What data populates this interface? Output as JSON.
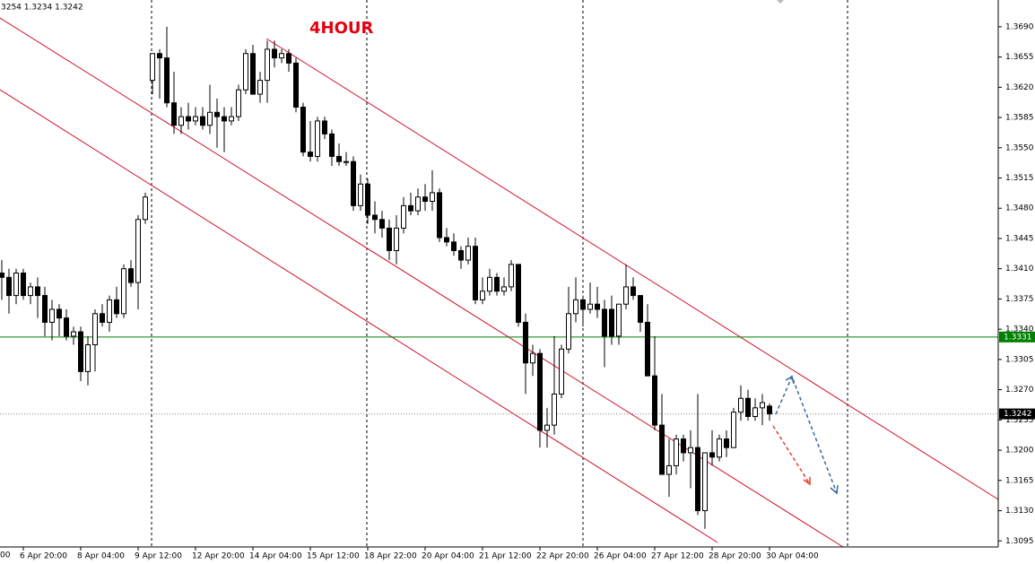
{
  "chart_data": {
    "type": "candlestick",
    "title": "4HOUR",
    "info": "3254 1.3234 1.3242",
    "clipped_label": "00",
    "categories": [
      null,
      null,
      null,
      "6 Apr 20:00",
      null,
      null,
      null,
      null,
      null,
      null,
      null,
      "8 Apr 04:00",
      null,
      null,
      null,
      null,
      null,
      null,
      null,
      "9 Apr 12:00",
      null,
      null,
      null,
      null,
      null,
      null,
      null,
      "12 Apr 20:00",
      null,
      null,
      null,
      null,
      null,
      null,
      null,
      "14 Apr 04:00",
      null,
      null,
      null,
      null,
      null,
      null,
      null,
      "15 Apr 12:00",
      null,
      null,
      null,
      null,
      null,
      null,
      null,
      "18 Apr 22:00",
      null,
      null,
      null,
      null,
      null,
      null,
      null,
      "20 Apr 04:00",
      null,
      null,
      null,
      null,
      null,
      null,
      null,
      "21 Apr 12:00",
      null,
      null,
      null,
      null,
      null,
      null,
      null,
      "22 Apr 20:00",
      null,
      null,
      null,
      null,
      null,
      null,
      null,
      "26 Apr 04:00",
      null,
      null,
      null,
      null,
      null,
      null,
      null,
      "27 Apr 12:00",
      null,
      null,
      null,
      null,
      null,
      null,
      null,
      "28 Apr 20:00",
      null,
      null,
      null,
      null,
      null,
      null,
      null,
      "30 Apr 04:00"
    ],
    "open": [
      1.3405,
      1.34,
      1.3379,
      1.3405,
      1.3379,
      1.3389,
      1.3379,
      1.3348,
      1.3363,
      1.3353,
      1.3332,
      1.3337,
      1.3291,
      1.3322,
      1.3358,
      1.3348,
      1.3374,
      1.3358,
      1.341,
      1.3394,
      1.3467,
      1.3628,
      1.3659,
      1.3654,
      1.3602,
      1.3576,
      1.3586,
      1.3581,
      1.3586,
      1.3576,
      1.3591,
      1.3586,
      1.3581,
      1.3586,
      1.3617,
      1.3659,
      1.3612,
      1.3628,
      1.3664,
      1.3654,
      1.3659,
      1.3648,
      1.3597,
      1.3545,
      1.354,
      1.3581,
      1.3566,
      1.354,
      1.3534,
      1.3534,
      1.3483,
      1.3508,
      1.3472,
      1.3467,
      1.3457,
      1.3431,
      1.3457,
      1.3483,
      1.3477,
      1.3493,
      1.3488,
      1.3498,
      1.3446,
      1.3441,
      1.3431,
      1.342,
      1.3436,
      1.3374,
      1.3384,
      1.34,
      1.3384,
      1.3389,
      1.3415,
      1.3348,
      1.3301,
      1.3312,
      1.3223,
      1.3229,
      1.3265,
      1.3317,
      1.3358,
      1.3374,
      1.3363,
      1.3369,
      1.3363,
      1.3363,
      1.3332,
      1.3369,
      1.3389,
      1.3379,
      1.3348,
      1.3286,
      1.3229,
      1.3172,
      1.3182,
      1.3213,
      1.3197,
      1.3203,
      1.313,
      1.3197,
      1.3192,
      1.3213,
      1.3203,
      1.3244,
      1.326,
      1.3239,
      1.3249,
      1.3251
    ],
    "high": [
      1.342,
      1.341,
      1.341,
      1.341,
      1.3394,
      1.34,
      1.3389,
      1.3374,
      1.3369,
      1.3363,
      1.3343,
      1.3343,
      1.3332,
      1.3363,
      1.3369,
      1.3379,
      1.3389,
      1.3415,
      1.342,
      1.3472,
      1.3498,
      1.3659,
      1.3664,
      1.369,
      1.3638,
      1.3597,
      1.3602,
      1.3597,
      1.3597,
      1.3623,
      1.3607,
      1.3597,
      1.3597,
      1.3623,
      1.3664,
      1.3669,
      1.3638,
      1.3674,
      1.3674,
      1.3664,
      1.3664,
      1.3654,
      1.3602,
      1.3581,
      1.3586,
      1.3586,
      1.3571,
      1.3555,
      1.3545,
      1.354,
      1.3519,
      1.3514,
      1.3488,
      1.3477,
      1.3467,
      1.3472,
      1.3493,
      1.3498,
      1.3503,
      1.3508,
      1.3524,
      1.3503,
      1.3457,
      1.3451,
      1.3436,
      1.3446,
      1.3446,
      1.34,
      1.341,
      1.3405,
      1.34,
      1.342,
      1.3415,
      1.3358,
      1.3322,
      1.3317,
      1.3249,
      1.3332,
      1.3322,
      1.3389,
      1.34,
      1.3379,
      1.3394,
      1.3389,
      1.3374,
      1.3379,
      1.3369,
      1.3415,
      1.34,
      1.3379,
      1.3369,
      1.3332,
      1.3265,
      1.3213,
      1.3218,
      1.3218,
      1.3223,
      1.3265,
      1.3197,
      1.3223,
      1.3218,
      1.3223,
      1.3249,
      1.3275,
      1.327,
      1.326,
      1.3265,
      1.3254
    ],
    "low": [
      1.3374,
      1.3358,
      1.3369,
      1.3374,
      1.3369,
      1.3353,
      1.3332,
      1.3327,
      1.3332,
      1.3327,
      1.3322,
      1.328,
      1.3275,
      1.3291,
      1.3343,
      1.3337,
      1.3353,
      1.3353,
      1.3389,
      1.3363,
      1.3462,
      1.3612,
      1.3607,
      1.3597,
      1.3566,
      1.3566,
      1.3571,
      1.3576,
      1.3571,
      1.3566,
      1.355,
      1.3545,
      1.3576,
      1.3581,
      1.3612,
      1.3612,
      1.3602,
      1.3602,
      1.3643,
      1.3648,
      1.3638,
      1.3591,
      1.354,
      1.3534,
      1.3534,
      1.356,
      1.3529,
      1.3529,
      1.3529,
      1.3477,
      1.3477,
      1.3462,
      1.3451,
      1.3446,
      1.342,
      1.3415,
      1.3451,
      1.3472,
      1.3472,
      1.3477,
      1.3477,
      1.3441,
      1.3436,
      1.3425,
      1.341,
      1.3415,
      1.3369,
      1.3369,
      1.3379,
      1.3379,
      1.3379,
      1.3384,
      1.3343,
      1.3265,
      1.3286,
      1.3203,
      1.3203,
      1.3218,
      1.326,
      1.3312,
      1.3348,
      1.3343,
      1.3358,
      1.3353,
      1.3296,
      1.3322,
      1.3322,
      1.3363,
      1.3374,
      1.3337,
      1.3286,
      1.3223,
      1.3172,
      1.3146,
      1.3172,
      1.3187,
      1.3156,
      1.3125,
      1.3109,
      1.3182,
      1.3187,
      1.3192,
      1.3203,
      1.3234,
      1.3234,
      1.3234,
      1.3229,
      1.3234
    ],
    "close": [
      1.34,
      1.3379,
      1.3405,
      1.3379,
      1.3389,
      1.3379,
      1.3348,
      1.3363,
      1.3353,
      1.3332,
      1.3337,
      1.3291,
      1.3322,
      1.3358,
      1.3348,
      1.3374,
      1.3358,
      1.341,
      1.3394,
      1.3467,
      1.3493,
      1.3659,
      1.3654,
      1.3602,
      1.3576,
      1.3586,
      1.3581,
      1.3586,
      1.3576,
      1.3591,
      1.3586,
      1.3581,
      1.3586,
      1.3617,
      1.3659,
      1.3612,
      1.3628,
      1.3664,
      1.3654,
      1.3659,
      1.3648,
      1.3597,
      1.3545,
      1.354,
      1.3581,
      1.3566,
      1.354,
      1.3534,
      1.3534,
      1.3483,
      1.3508,
      1.3472,
      1.3467,
      1.3457,
      1.3431,
      1.3457,
      1.3483,
      1.3477,
      1.3493,
      1.3488,
      1.3498,
      1.3446,
      1.3441,
      1.3431,
      1.342,
      1.3436,
      1.3374,
      1.3384,
      1.34,
      1.3384,
      1.3389,
      1.3415,
      1.3348,
      1.3301,
      1.3312,
      1.3223,
      1.3229,
      1.3265,
      1.3317,
      1.3358,
      1.3374,
      1.3363,
      1.3369,
      1.3363,
      1.3332,
      1.3332,
      1.3369,
      1.3389,
      1.3379,
      1.3348,
      1.3286,
      1.3229,
      1.3172,
      1.3182,
      1.3213,
      1.3197,
      1.3203,
      1.313,
      1.3197,
      1.3192,
      1.3213,
      1.3203,
      1.3244,
      1.326,
      1.3239,
      1.3249,
      1.3255,
      1.3242
    ],
    "ylim": [
      1.3088,
      1.3721
    ],
    "yticks": [
      1.3095,
      {
        "value": 1.313,
        "label": "1.3130"
      },
      1.3165,
      {
        "value": 1.32,
        "label": "1.3200"
      },
      1.3235,
      {
        "value": 1.327,
        "label": "1.3270"
      },
      1.3305,
      {
        "value": 1.334,
        "label": "1.3340"
      },
      1.3375,
      {
        "value": 1.341,
        "label": "1.3410"
      },
      1.3445,
      {
        "value": 1.348,
        "label": "1.3480"
      },
      1.3515,
      {
        "value": 1.355,
        "label": "1.3550"
      },
      1.3585,
      {
        "value": 1.362,
        "label": "1.3620"
      },
      1.3655,
      {
        "value": 1.369,
        "label": "1.3690"
      }
    ],
    "hlines": [
      {
        "value": 1.3331,
        "color": "#008000",
        "style": "solid"
      },
      {
        "value": 1.3242,
        "color": "#000000",
        "style": "dotted"
      }
    ]
  }
}
